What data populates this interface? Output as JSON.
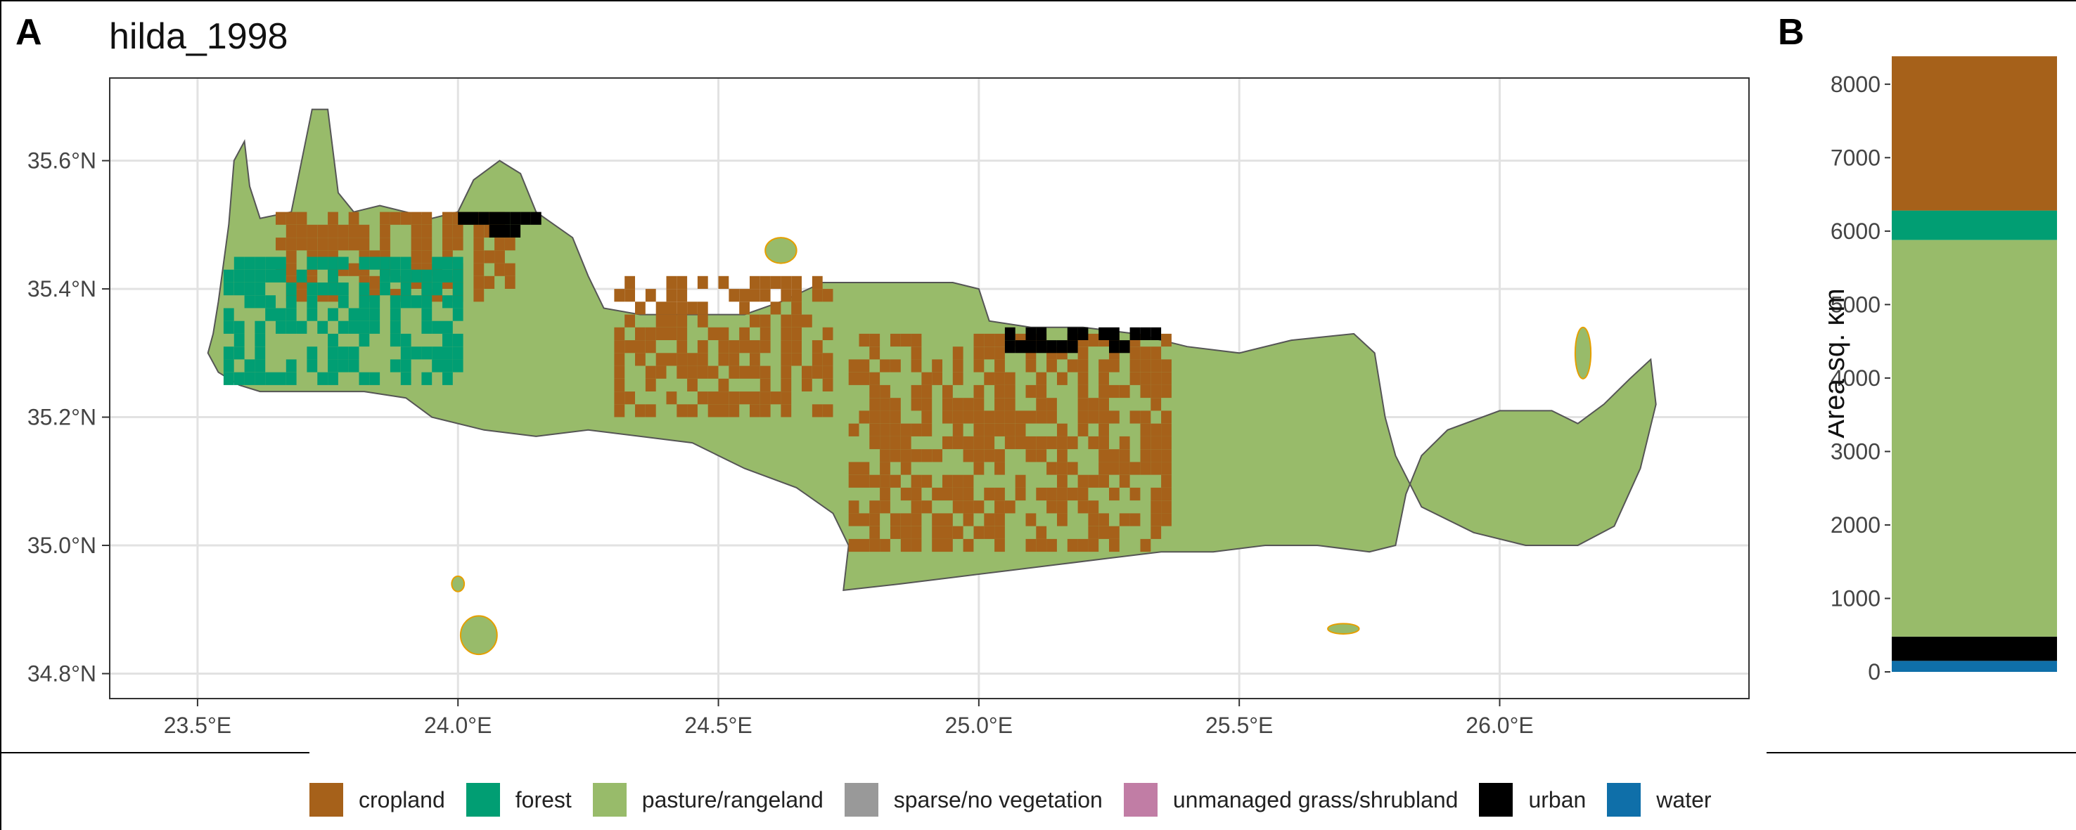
{
  "panels": {
    "a_letter": "A",
    "b_letter": "B"
  },
  "chart_data": [
    {
      "type": "heatmap",
      "title": "hilda_1998",
      "xlabel": "",
      "ylabel": "",
      "x_ticks": [
        "23.5°E",
        "24.0°E",
        "24.5°E",
        "25.0°E",
        "25.5°E",
        "26.0°E"
      ],
      "x_tick_values": [
        23.5,
        24.0,
        24.5,
        25.0,
        25.5,
        26.0
      ],
      "y_ticks": [
        "34.8°N",
        "35.0°N",
        "35.2°N",
        "35.4°N",
        "35.6°N"
      ],
      "y_tick_values": [
        34.8,
        35.0,
        35.2,
        35.4,
        35.6
      ],
      "xlim": [
        23.33,
        26.48
      ],
      "ylim": [
        34.76,
        35.73
      ],
      "grid": true,
      "description_regions": [
        {
          "class": "pasture/rangeland",
          "lon": [
            23.52,
            26.32
          ],
          "lat": [
            34.93,
            35.69
          ]
        },
        {
          "class": "cropland",
          "lon": [
            24.75,
            25.35
          ],
          "lat": [
            34.99,
            35.32
          ]
        },
        {
          "class": "cropland",
          "lon": [
            24.3,
            24.7
          ],
          "lat": [
            35.2,
            35.42
          ]
        },
        {
          "class": "cropland",
          "lon": [
            23.65,
            24.1
          ],
          "lat": [
            35.38,
            35.52
          ]
        },
        {
          "class": "forest",
          "lon": [
            23.55,
            24.0
          ],
          "lat": [
            35.25,
            35.45
          ]
        },
        {
          "class": "urban",
          "lon": [
            24.0,
            24.15
          ],
          "lat": [
            35.48,
            35.52
          ]
        },
        {
          "class": "urban",
          "lon": [
            25.05,
            25.35
          ],
          "lat": [
            35.3,
            35.34
          ]
        }
      ]
    },
    {
      "type": "bar",
      "stacked": true,
      "title": "",
      "xlabel": "",
      "ylabel": "Area sq. km",
      "ylim": [
        0,
        8400
      ],
      "y_ticks": [
        0,
        1000,
        2000,
        3000,
        4000,
        5000,
        6000,
        7000,
        8000
      ],
      "categories": [
        ""
      ],
      "series": [
        {
          "name": "water",
          "values": [
            150
          ]
        },
        {
          "name": "urban",
          "values": [
            330
          ]
        },
        {
          "name": "pasture/rangeland",
          "values": [
            5400
          ]
        },
        {
          "name": "forest",
          "values": [
            400
          ]
        },
        {
          "name": "cropland",
          "values": [
            2100
          ]
        }
      ]
    }
  ],
  "legend": {
    "items": [
      {
        "label": "cropland",
        "color": "#A6611A"
      },
      {
        "label": "forest",
        "color": "#019E73"
      },
      {
        "label": "pasture/rangeland",
        "color": "#98BB6A"
      },
      {
        "label": "sparse/no vegetation",
        "color": "#999999"
      },
      {
        "label": "unmanaged grass/shrubland",
        "color": "#C17DA5"
      },
      {
        "label": "urban",
        "color": "#000000"
      },
      {
        "label": "water",
        "color": "#0F6FA9"
      }
    ]
  },
  "colors": {
    "coast_outline": "#555555",
    "coast_highlight": "#E69F00",
    "grid": "#E2E2E2",
    "panel_border": "#333333"
  }
}
